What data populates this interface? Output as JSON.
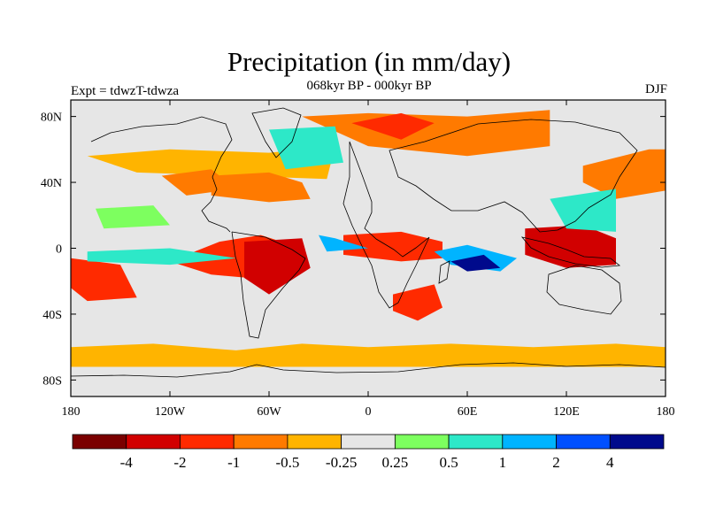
{
  "chart_data": {
    "type": "heatmap",
    "title": "Precipitation (in mm/day)",
    "subtitle": "068kyr BP - 000kyr BP",
    "left_label": "Expt = tdwzT-tdwza",
    "right_label": "DJF",
    "x_ticks": [
      "180",
      "120W",
      "60W",
      "0",
      "60E",
      "120E",
      "180"
    ],
    "x_values": [
      -180,
      -120,
      -60,
      0,
      60,
      120,
      180
    ],
    "y_ticks": [
      "80N",
      "40N",
      "0",
      "40S",
      "80S"
    ],
    "y_values": [
      80,
      40,
      0,
      -40,
      -80
    ],
    "xlim": [
      -180,
      180
    ],
    "ylim": [
      -90,
      90
    ],
    "colorbar": {
      "colors": [
        "#7a0000",
        "#d10000",
        "#ff2a00",
        "#ff7a00",
        "#ffb400",
        "#e6e6e6",
        "#7dff5f",
        "#2de8c8",
        "#00b4ff",
        "#0050ff",
        "#000a8c"
      ],
      "labels": [
        "-4",
        "-2",
        "-1",
        "-0.5",
        "-0.25",
        "0.25",
        "0.5",
        "1",
        "2",
        "4"
      ]
    },
    "regions": [
      {
        "lon": [
          -180,
          -130,
          -80,
          -40,
          0,
          50,
          100,
          150,
          180,
          180,
          -180
        ],
        "lat": [
          -60,
          -58,
          -62,
          -58,
          -60,
          -58,
          -60,
          -58,
          -60,
          -72,
          -72
        ],
        "level": 4
      },
      {
        "lon": [
          -170,
          -120,
          -60,
          -20,
          -25,
          -80,
          -140
        ],
        "lat": [
          56,
          60,
          58,
          62,
          42,
          44,
          46
        ],
        "level": 4
      },
      {
        "lon": [
          -40,
          0,
          60,
          110,
          110,
          60,
          0
        ],
        "lat": [
          80,
          82,
          80,
          84,
          62,
          56,
          62
        ],
        "level": 3
      },
      {
        "lon": [
          -10,
          20,
          40,
          20
        ],
        "lat": [
          76,
          82,
          76,
          66
        ],
        "level": 2
      },
      {
        "lon": [
          -95,
          -60,
          -40,
          -35,
          -60,
          -95
        ],
        "lat": [
          44,
          46,
          40,
          30,
          28,
          32
        ],
        "level": 3
      },
      {
        "lon": [
          -120,
          -90,
          -65,
          -40,
          -50,
          -95
        ],
        "lat": [
          -8,
          4,
          8,
          0,
          -20,
          -16
        ],
        "level": 2
      },
      {
        "lon": [
          -75,
          -40,
          -35,
          -60,
          -75
        ],
        "lat": [
          4,
          6,
          -12,
          -28,
          -18
        ],
        "level": 1
      },
      {
        "lon": [
          -15,
          20,
          45,
          45,
          20,
          -15
        ],
        "lat": [
          8,
          10,
          4,
          -6,
          -8,
          -4
        ],
        "level": 2
      },
      {
        "lon": [
          15,
          40,
          45,
          30,
          15
        ],
        "lat": [
          -28,
          -22,
          -36,
          -44,
          -38
        ],
        "level": 2
      },
      {
        "lon": [
          95,
          130,
          150,
          150,
          120,
          95
        ],
        "lat": [
          12,
          14,
          6,
          -10,
          -12,
          -4
        ],
        "level": 1
      },
      {
        "lon": [
          130,
          170,
          180,
          180,
          150,
          130
        ],
        "lat": [
          50,
          60,
          60,
          35,
          30,
          40
        ],
        "level": 3
      },
      {
        "lon": [
          -180,
          -150,
          -140,
          -170,
          -180
        ],
        "lat": [
          -6,
          -10,
          -30,
          -32,
          -24
        ],
        "level": 2
      },
      {
        "lon": [
          -125,
          -95,
          -80,
          -110
        ],
        "lat": [
          44,
          48,
          36,
          32
        ],
        "level": 3
      },
      {
        "lon": [
          -165,
          -130,
          -120,
          -160
        ],
        "lat": [
          24,
          26,
          14,
          12
        ],
        "level": 6
      },
      {
        "lon": [
          -170,
          -120,
          -80,
          -120,
          -170
        ],
        "lat": [
          -2,
          0,
          -6,
          -10,
          -8
        ],
        "level": 7
      },
      {
        "lon": [
          40,
          60,
          90,
          80,
          50
        ],
        "lat": [
          -2,
          2,
          -6,
          -14,
          -10
        ],
        "level": 8
      },
      {
        "lon": [
          50,
          70,
          80,
          60
        ],
        "lat": [
          -8,
          -4,
          -12,
          -14
        ],
        "level": 10
      },
      {
        "lon": [
          -60,
          -20,
          -15,
          -50
        ],
        "lat": [
          72,
          74,
          52,
          48
        ],
        "level": 7
      },
      {
        "lon": [
          -30,
          -20,
          0,
          -25
        ],
        "lat": [
          8,
          6,
          0,
          -2
        ],
        "level": 8
      },
      {
        "lon": [
          110,
          150,
          150,
          120
        ],
        "lat": [
          30,
          36,
          10,
          12
        ],
        "level": 7
      }
    ]
  }
}
